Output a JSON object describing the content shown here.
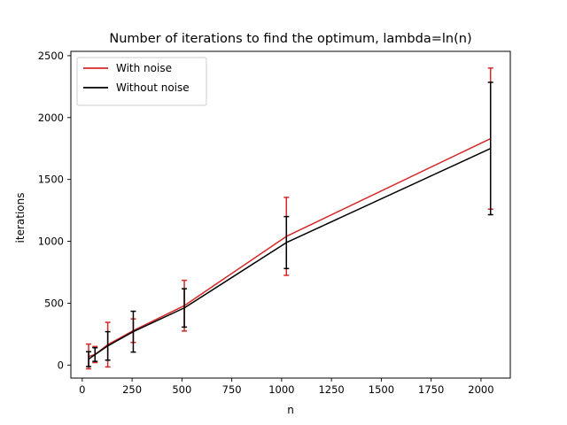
{
  "chart_data": {
    "type": "line",
    "title": "Number of iterations to find the optimum, lambda=ln(n)",
    "xlabel": "n",
    "ylabel": "iterations",
    "xlim": [
      -57,
      2147
    ],
    "ylim": [
      -105,
      2535
    ],
    "xticks": [
      0,
      250,
      500,
      750,
      1000,
      1250,
      1500,
      1750,
      2000
    ],
    "yticks": [
      0,
      500,
      1000,
      1500,
      2000,
      2500
    ],
    "grid": false,
    "legend": "top-left",
    "x": [
      32,
      64,
      128,
      256,
      512,
      1024,
      2048
    ],
    "series": [
      {
        "name": "With noise",
        "color": "#d62728",
        "values": [
          70,
          85,
          165,
          278,
          480,
          1040,
          1830
        ],
        "errors": [
          100,
          65,
          180,
          95,
          205,
          315,
          570
        ]
      },
      {
        "name": "Without noise",
        "color": "#000000",
        "values": [
          48,
          85,
          155,
          270,
          462,
          990,
          1750
        ],
        "errors": [
          60,
          55,
          115,
          165,
          155,
          210,
          535
        ]
      }
    ]
  }
}
